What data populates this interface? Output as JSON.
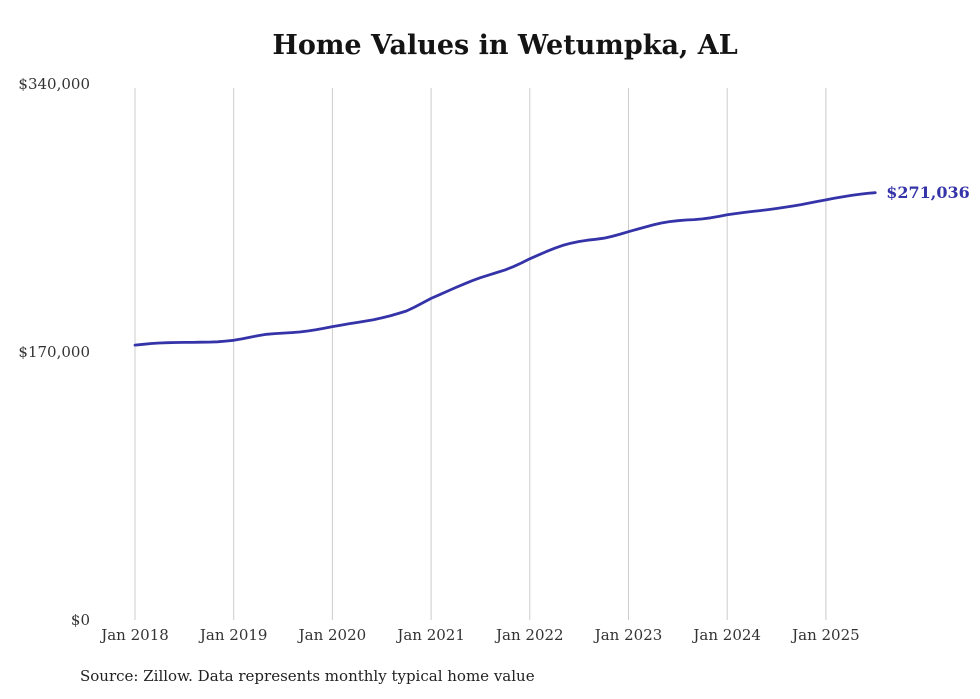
{
  "title": "Home Values in Wetumpka, AL",
  "source": "Source: Zillow. Data represents monthly typical home value",
  "colors": {
    "line": "#3533a8",
    "grid": "#cccccc",
    "tick_text": "#333333",
    "title_text": "#141414"
  },
  "chart_data": {
    "type": "line",
    "title": "Home Values in Wetumpka, AL",
    "xlabel": "",
    "ylabel": "",
    "ylim": [
      0,
      340000
    ],
    "grid": "vertical-only",
    "legend": false,
    "x_start": "Jan 2018",
    "x_end": "Jul 2025",
    "x_tick_labels": [
      "Jan 2018",
      "Jan 2019",
      "Jan 2020",
      "Jan 2021",
      "Jan 2022",
      "Jan 2023",
      "Jan 2024",
      "Jan 2025"
    ],
    "y_ticks": [
      {
        "label": "$0",
        "value": 0
      },
      {
        "label": "$170,000",
        "value": 170000
      },
      {
        "label": "$340,000",
        "value": 340000
      }
    ],
    "annotation": {
      "text": "$271,036",
      "value": 271036
    },
    "series": [
      {
        "name": "Monthly typical home value",
        "values": [
          174400,
          174900,
          175400,
          175700,
          175900,
          176000,
          176100,
          176100,
          176200,
          176300,
          176500,
          176900,
          177400,
          178300,
          179400,
          180400,
          181200,
          181700,
          182000,
          182300,
          182700,
          183300,
          184100,
          185100,
          186100,
          187000,
          187900,
          188700,
          189600,
          190500,
          191600,
          192900,
          194400,
          196000,
          198500,
          201200,
          204000,
          206300,
          208600,
          210900,
          213100,
          215200,
          217100,
          218800,
          220400,
          222100,
          224100,
          226500,
          229100,
          231400,
          233700,
          235800,
          237600,
          239000,
          240100,
          240900,
          241500,
          242200,
          243300,
          244800,
          246300,
          247800,
          249200,
          250600,
          251800,
          252700,
          253300,
          253700,
          254000,
          254400,
          255100,
          256000,
          257000,
          257800,
          258500,
          259100,
          259700,
          260300,
          261000,
          261800,
          262600,
          263500,
          264500,
          265500,
          266500,
          267500,
          268400,
          269300,
          270000,
          270600,
          271036
        ]
      }
    ]
  }
}
